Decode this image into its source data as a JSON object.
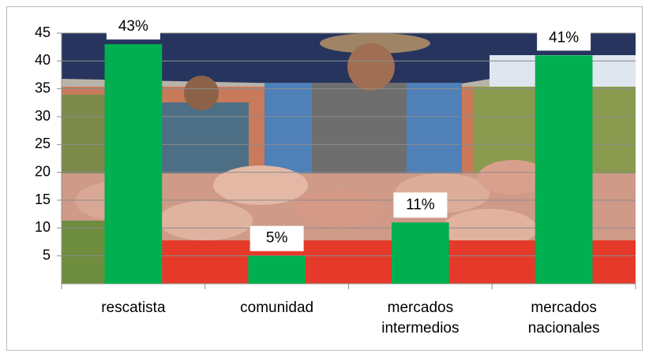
{
  "chart_data": {
    "type": "bar",
    "categories": [
      "rescatista",
      "comunidad",
      "mercados intermedios",
      "mercados nacionales"
    ],
    "values": [
      43,
      5,
      11,
      41
    ],
    "value_labels": [
      "43%",
      "5%",
      "11%",
      "41%"
    ],
    "color": "#00b050",
    "ylim": [
      0,
      45
    ],
    "yticks": [
      5,
      10,
      15,
      20,
      25,
      30,
      35,
      40,
      45
    ],
    "grid": true
  }
}
